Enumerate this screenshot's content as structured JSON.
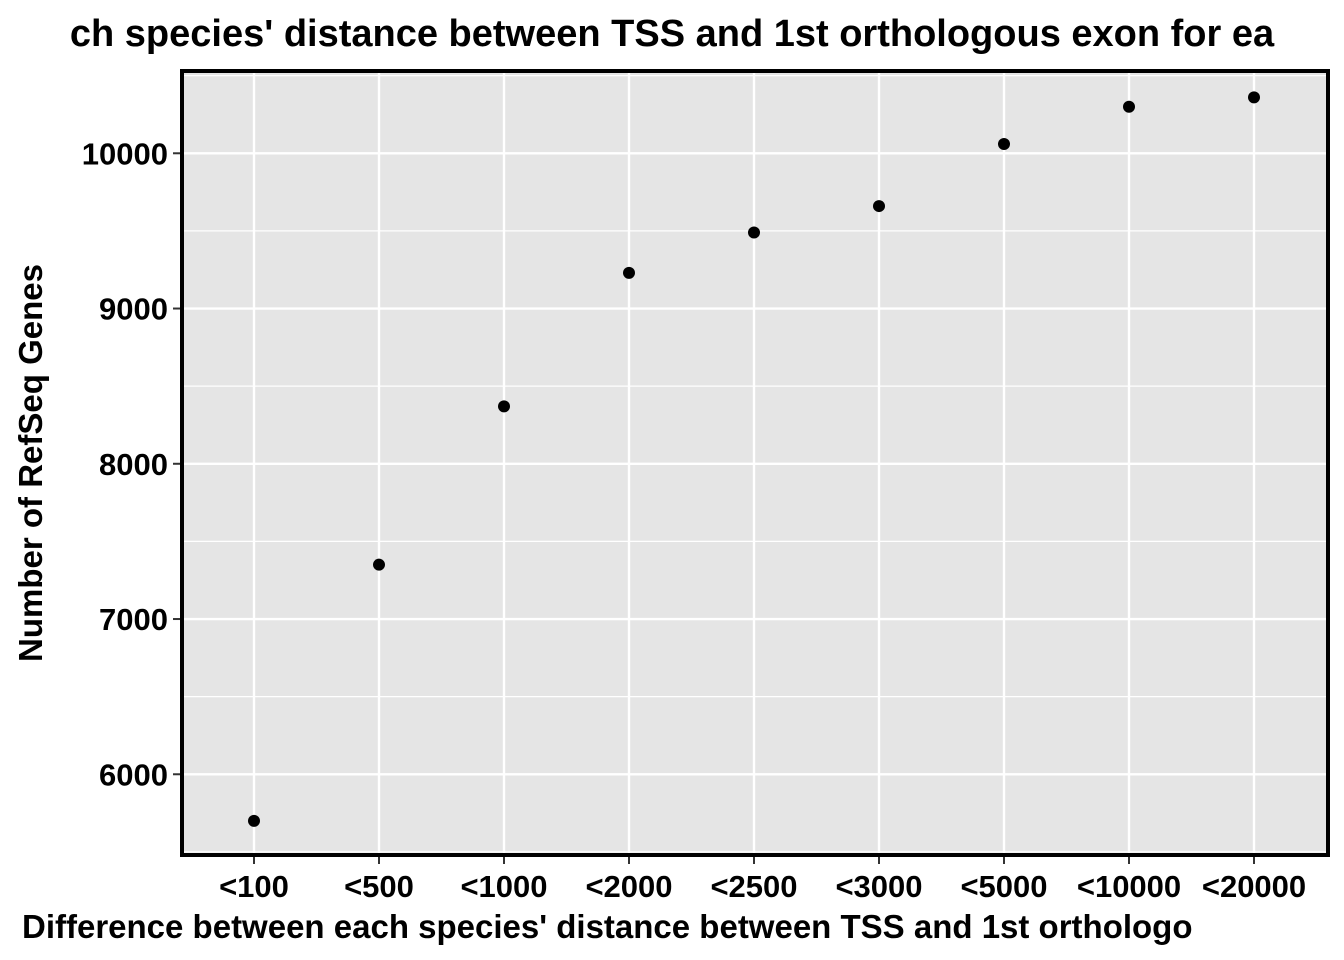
{
  "chart_data": {
    "type": "scatter",
    "title": "ch species' distance between TSS and 1st orthologous exon for ea",
    "xlabel": "Difference between each species' distance between TSS and 1st orthologo",
    "ylabel": "Number of RefSeq Genes",
    "categories": [
      "<100",
      "<500",
      "<1000",
      "<2000",
      "<2500",
      "<3000",
      "<5000",
      "<10000",
      "<20000"
    ],
    "values": [
      5700,
      7350,
      8370,
      9230,
      9490,
      9660,
      10060,
      10300,
      10360
    ],
    "ylim": [
      5480,
      10530
    ],
    "yticks": [
      6000,
      7000,
      8000,
      9000,
      10000
    ],
    "grid": true,
    "legend": "none",
    "colors": {
      "panel_background": "#e5e5e5",
      "grid": "#ffffff",
      "points": "#000000",
      "panel_border": "#000000"
    }
  }
}
